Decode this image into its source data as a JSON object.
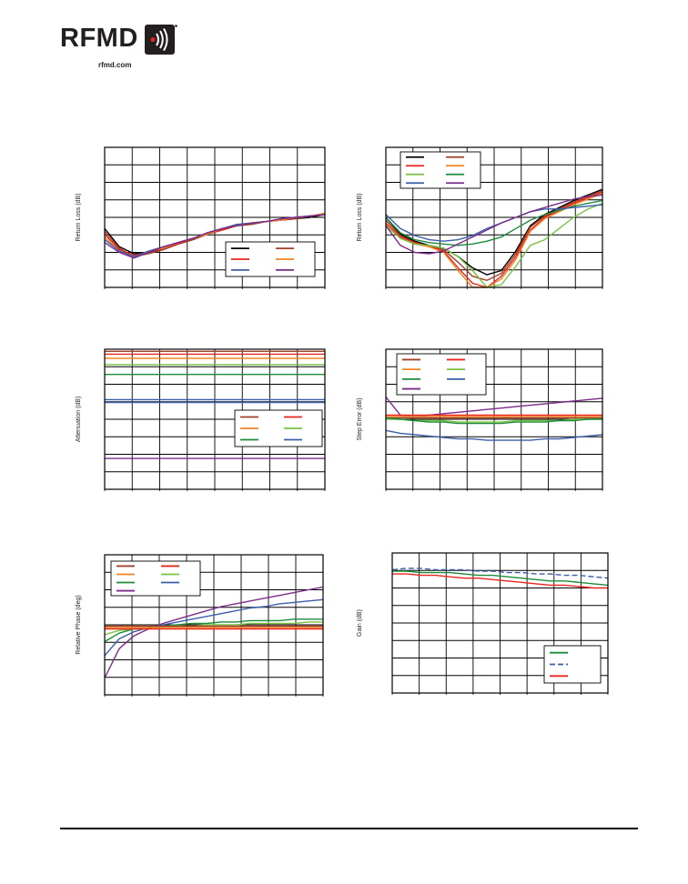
{
  "header": {
    "brand": "RFMD",
    "website": "rfmd.com"
  },
  "colors": {
    "black": "#000000",
    "brown": "#a0402a",
    "red": "#e8261e",
    "orange": "#f58220",
    "lightgreen": "#7ac143",
    "green": "#1e8b3a",
    "blue": "#3b5ea8",
    "purple": "#7b2d8b",
    "tealgreen": "#2e8b57"
  },
  "chart_data": [
    {
      "id": "c1",
      "type": "line",
      "ylabel": "Return Loss (dB)",
      "grid": true,
      "legend_position": "bottom-right",
      "legend_colors": [
        "black",
        "brown",
        "red",
        "orange",
        "blue",
        "purple"
      ],
      "series": [
        {
          "color": "black",
          "y": [
            0.42,
            0.29,
            0.24,
            0.25,
            0.27,
            0.31,
            0.34,
            0.38,
            0.41,
            0.44,
            0.45,
            0.47,
            0.48,
            0.49,
            0.5,
            0.52
          ]
        },
        {
          "color": "brown",
          "y": [
            0.4,
            0.28,
            0.22,
            0.24,
            0.27,
            0.31,
            0.34,
            0.38,
            0.41,
            0.44,
            0.45,
            0.47,
            0.48,
            0.49,
            0.51,
            0.52
          ]
        },
        {
          "color": "red",
          "y": [
            0.38,
            0.27,
            0.23,
            0.25,
            0.28,
            0.31,
            0.35,
            0.38,
            0.41,
            0.44,
            0.46,
            0.47,
            0.48,
            0.5,
            0.51,
            0.52
          ]
        },
        {
          "color": "orange",
          "y": [
            0.36,
            0.26,
            0.22,
            0.26,
            0.28,
            0.32,
            0.35,
            0.38,
            0.42,
            0.44,
            0.46,
            0.47,
            0.48,
            0.5,
            0.51,
            0.53
          ]
        },
        {
          "color": "blue",
          "y": [
            0.34,
            0.26,
            0.22,
            0.26,
            0.29,
            0.32,
            0.35,
            0.39,
            0.42,
            0.45,
            0.46,
            0.47,
            0.49,
            0.5,
            0.51,
            0.52
          ]
        },
        {
          "color": "purple",
          "y": [
            0.32,
            0.25,
            0.21,
            0.25,
            0.29,
            0.32,
            0.35,
            0.39,
            0.42,
            0.44,
            0.46,
            0.47,
            0.49,
            0.5,
            0.51,
            0.52
          ]
        }
      ]
    },
    {
      "id": "c2",
      "type": "line",
      "ylabel": "Return Loss (dB)",
      "grid": true,
      "legend_position": "top-left",
      "legend_colors": [
        "black",
        "brown",
        "red",
        "orange",
        "lightgreen",
        "green",
        "blue",
        "purple"
      ],
      "series": [
        {
          "color": "black",
          "y": [
            0.5,
            0.38,
            0.33,
            0.3,
            0.28,
            0.22,
            0.14,
            0.09,
            0.12,
            0.26,
            0.44,
            0.52,
            0.57,
            0.62,
            0.66,
            0.7
          ]
        },
        {
          "color": "brown",
          "y": [
            0.48,
            0.37,
            0.32,
            0.29,
            0.27,
            0.18,
            0.08,
            0.05,
            0.1,
            0.24,
            0.43,
            0.51,
            0.56,
            0.61,
            0.65,
            0.69
          ]
        },
        {
          "color": "red",
          "y": [
            0.46,
            0.36,
            0.32,
            0.29,
            0.26,
            0.14,
            0.03,
            0.0,
            0.08,
            0.22,
            0.41,
            0.5,
            0.55,
            0.6,
            0.64,
            0.68
          ]
        },
        {
          "color": "orange",
          "y": [
            0.45,
            0.35,
            0.31,
            0.29,
            0.25,
            0.12,
            0.0,
            0.0,
            0.06,
            0.2,
            0.4,
            0.49,
            0.54,
            0.59,
            0.63,
            0.67
          ]
        },
        {
          "color": "lightgreen",
          "y": [
            0.44,
            0.35,
            0.31,
            0.3,
            0.28,
            0.22,
            0.12,
            0.0,
            0.02,
            0.15,
            0.3,
            0.34,
            0.42,
            0.5,
            0.56,
            0.6
          ]
        },
        {
          "color": "green",
          "y": [
            0.5,
            0.39,
            0.34,
            0.32,
            0.31,
            0.3,
            0.31,
            0.33,
            0.36,
            0.42,
            0.48,
            0.52,
            0.55,
            0.58,
            0.6,
            0.62
          ]
        },
        {
          "color": "blue",
          "y": [
            0.52,
            0.42,
            0.37,
            0.34,
            0.33,
            0.34,
            0.37,
            0.42,
            0.46,
            0.5,
            0.54,
            0.56,
            0.56,
            0.57,
            0.58,
            0.59
          ]
        },
        {
          "color": "purple",
          "y": [
            0.44,
            0.3,
            0.25,
            0.24,
            0.26,
            0.31,
            0.36,
            0.41,
            0.46,
            0.5,
            0.54,
            0.57,
            0.6,
            0.63,
            0.65,
            0.66
          ]
        }
      ]
    },
    {
      "id": "c3",
      "type": "line",
      "ylabel": "Attenuation (dB)",
      "grid": true,
      "legend_position": "right",
      "legend_colors": [
        "brown",
        "red",
        "orange",
        "lightgreen",
        "green",
        "blue"
      ],
      "series": [
        {
          "color": "brown",
          "y": [
            0.985,
            0.985
          ]
        },
        {
          "color": "red",
          "y": [
            0.965,
            0.965
          ]
        },
        {
          "color": "orange",
          "y": [
            0.935,
            0.935
          ]
        },
        {
          "color": "lightgreen",
          "y": [
            0.89,
            0.89
          ]
        },
        {
          "color": "green",
          "y": [
            0.82,
            0.82
          ]
        },
        {
          "color": "blue",
          "y": [
            0.64,
            0.64
          ]
        },
        {
          "color": "blue",
          "y": [
            0.62,
            0.62
          ]
        },
        {
          "color": "purple",
          "y": [
            0.22,
            0.22
          ]
        }
      ]
    },
    {
      "id": "c4",
      "type": "line",
      "ylabel": "Step Error (dB)",
      "grid": true,
      "legend_position": "top-left",
      "legend_colors": [
        "brown",
        "red",
        "orange",
        "lightgreen",
        "green",
        "blue",
        "purple"
      ],
      "series": [
        {
          "color": "purple",
          "y": [
            0.66,
            0.53,
            0.52,
            0.53,
            0.54,
            0.55,
            0.56,
            0.57,
            0.58,
            0.59,
            0.6,
            0.61,
            0.62,
            0.63,
            0.64,
            0.65
          ]
        },
        {
          "color": "red",
          "y": [
            0.53,
            0.53,
            0.53,
            0.53,
            0.53,
            0.53,
            0.53,
            0.53,
            0.53,
            0.53,
            0.53,
            0.53,
            0.53,
            0.53,
            0.53,
            0.53
          ]
        },
        {
          "color": "orange",
          "y": [
            0.52,
            0.52,
            0.52,
            0.52,
            0.52,
            0.52,
            0.52,
            0.52,
            0.52,
            0.52,
            0.52,
            0.52,
            0.52,
            0.52,
            0.52,
            0.52
          ]
        },
        {
          "color": "brown",
          "y": [
            0.51,
            0.51,
            0.51,
            0.51,
            0.51,
            0.51,
            0.51,
            0.51,
            0.51,
            0.51,
            0.51,
            0.51,
            0.51,
            0.51,
            0.51,
            0.51
          ]
        },
        {
          "color": "lightgreen",
          "y": [
            0.5,
            0.5,
            0.49,
            0.49,
            0.49,
            0.48,
            0.48,
            0.48,
            0.48,
            0.49,
            0.49,
            0.49,
            0.49,
            0.5,
            0.5,
            0.5
          ]
        },
        {
          "color": "green",
          "y": [
            0.51,
            0.5,
            0.49,
            0.48,
            0.48,
            0.47,
            0.47,
            0.47,
            0.47,
            0.48,
            0.48,
            0.48,
            0.49,
            0.49,
            0.5,
            0.5
          ]
        },
        {
          "color": "blue",
          "y": [
            0.42,
            0.4,
            0.39,
            0.38,
            0.37,
            0.36,
            0.36,
            0.35,
            0.35,
            0.35,
            0.35,
            0.36,
            0.36,
            0.37,
            0.38,
            0.39
          ]
        }
      ]
    },
    {
      "id": "c5",
      "type": "line",
      "ylabel": "Relative Phase (deg)",
      "grid": true,
      "legend_position": "top-left",
      "legend_colors": [
        "brown",
        "red",
        "orange",
        "lightgreen",
        "green",
        "blue",
        "purple"
      ],
      "series": [
        {
          "color": "purple",
          "y": [
            0.12,
            0.33,
            0.42,
            0.47,
            0.51,
            0.54,
            0.57,
            0.6,
            0.63,
            0.65,
            0.67,
            0.69,
            0.71,
            0.73,
            0.75,
            0.77
          ]
        },
        {
          "color": "blue",
          "y": [
            0.28,
            0.4,
            0.45,
            0.48,
            0.5,
            0.52,
            0.54,
            0.56,
            0.58,
            0.6,
            0.62,
            0.63,
            0.65,
            0.66,
            0.67,
            0.68
          ]
        },
        {
          "color": "green",
          "y": [
            0.38,
            0.44,
            0.47,
            0.48,
            0.49,
            0.5,
            0.51,
            0.51,
            0.52,
            0.52,
            0.53,
            0.53,
            0.53,
            0.54,
            0.54,
            0.54
          ]
        },
        {
          "color": "lightgreen",
          "y": [
            0.43,
            0.46,
            0.47,
            0.48,
            0.49,
            0.49,
            0.49,
            0.5,
            0.5,
            0.5,
            0.51,
            0.51,
            0.51,
            0.51,
            0.52,
            0.52
          ]
        },
        {
          "color": "orange",
          "y": [
            0.48,
            0.48,
            0.48,
            0.48,
            0.48,
            0.48,
            0.48,
            0.48,
            0.48,
            0.48,
            0.48,
            0.48,
            0.48,
            0.48,
            0.48,
            0.48
          ]
        },
        {
          "color": "red",
          "y": [
            0.47,
            0.47,
            0.47,
            0.47,
            0.47,
            0.47,
            0.47,
            0.47,
            0.47,
            0.47,
            0.47,
            0.47,
            0.47,
            0.47,
            0.47,
            0.47
          ]
        },
        {
          "color": "brown",
          "y": [
            0.49,
            0.49,
            0.49,
            0.49,
            0.49,
            0.49,
            0.49,
            0.49,
            0.49,
            0.49,
            0.49,
            0.49,
            0.49,
            0.49,
            0.49,
            0.49
          ]
        }
      ]
    },
    {
      "id": "c6",
      "type": "line",
      "ylabel": "Gain (dB)",
      "grid": true,
      "legend_position": "bottom-right",
      "legend_colors": [
        "green",
        "blue",
        "red"
      ],
      "series": [
        {
          "color": "blue",
          "dashed": true,
          "y": [
            0.88,
            0.89,
            0.89,
            0.88,
            0.88,
            0.88,
            0.87,
            0.87,
            0.86,
            0.86,
            0.85,
            0.85,
            0.84,
            0.84,
            0.83,
            0.82
          ]
        },
        {
          "color": "green",
          "y": [
            0.87,
            0.87,
            0.86,
            0.86,
            0.86,
            0.85,
            0.84,
            0.84,
            0.83,
            0.82,
            0.81,
            0.8,
            0.8,
            0.79,
            0.78,
            0.77
          ]
        },
        {
          "color": "red",
          "y": [
            0.85,
            0.85,
            0.84,
            0.84,
            0.83,
            0.82,
            0.82,
            0.81,
            0.8,
            0.79,
            0.78,
            0.77,
            0.77,
            0.76,
            0.75,
            0.75
          ]
        }
      ]
    }
  ]
}
